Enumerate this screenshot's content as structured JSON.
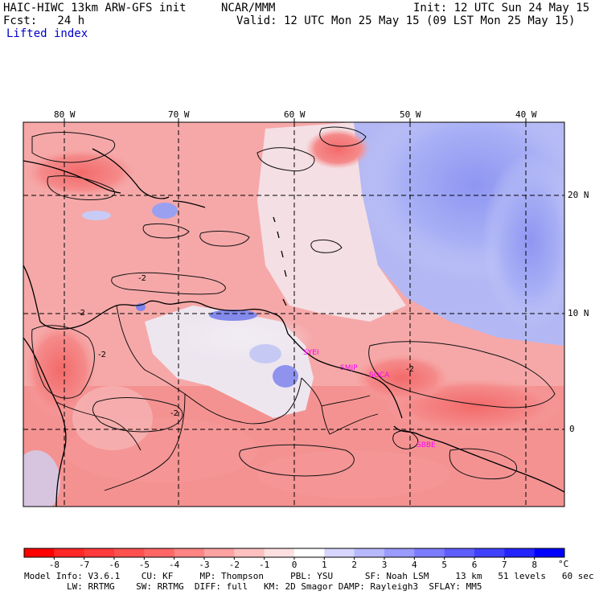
{
  "header": {
    "model": "HAIC-HIWC 13km ARW-GFS init",
    "center": "NCAR/MMM",
    "init": "Init: 12 UTC Sun 24 May 15",
    "fcst": "Fcst:   24 h",
    "valid": "Valid: 12 UTC Mon 25 May 15 (09 LST Mon 25 May 15)",
    "field": "Lifted index"
  },
  "map": {
    "lon_labels": [
      "80 W",
      "70 W",
      "60 W",
      "50 W",
      "40 W"
    ],
    "lat_labels": [
      "20 N",
      "10 N",
      "0"
    ],
    "contour_labels": [
      "-2",
      "-2",
      "-2",
      "-2",
      "-2"
    ],
    "stations": [
      "SYEI",
      "SMJP",
      "SOCA",
      "SBBE"
    ],
    "station_color": "#ff00ff"
  },
  "colorbar": {
    "labels": [
      "-8",
      "-7",
      "-6",
      "-5",
      "-4",
      "-3",
      "-2",
      "-1",
      "0",
      "1",
      "2",
      "3",
      "4",
      "5",
      "6",
      "7",
      "8"
    ],
    "unit": "°C",
    "colors": [
      "#ff0000",
      "#ff2626",
      "#ff3a3a",
      "#ff5050",
      "#ff6666",
      "#ff8484",
      "#ffa2a2",
      "#ffc0c0",
      "#ffe0e0",
      "#ffffff",
      "#d6d6ff",
      "#b8b8ff",
      "#9a9aff",
      "#7c7cff",
      "#5e5eff",
      "#4040ff",
      "#2424ff",
      "#0000ff"
    ]
  },
  "footer": {
    "line1": "Model Info: V3.6.1    CU: KF     MP: Thompson     PBL: YSU      SF: Noah LSM     13 km   51 levels   60 sec",
    "line2": "        LW: RRTMG    SW: RRTMG  DIFF: full   KM: 2D Smagor DAMP: Rayleigh3  SFLAY: MM5"
  }
}
